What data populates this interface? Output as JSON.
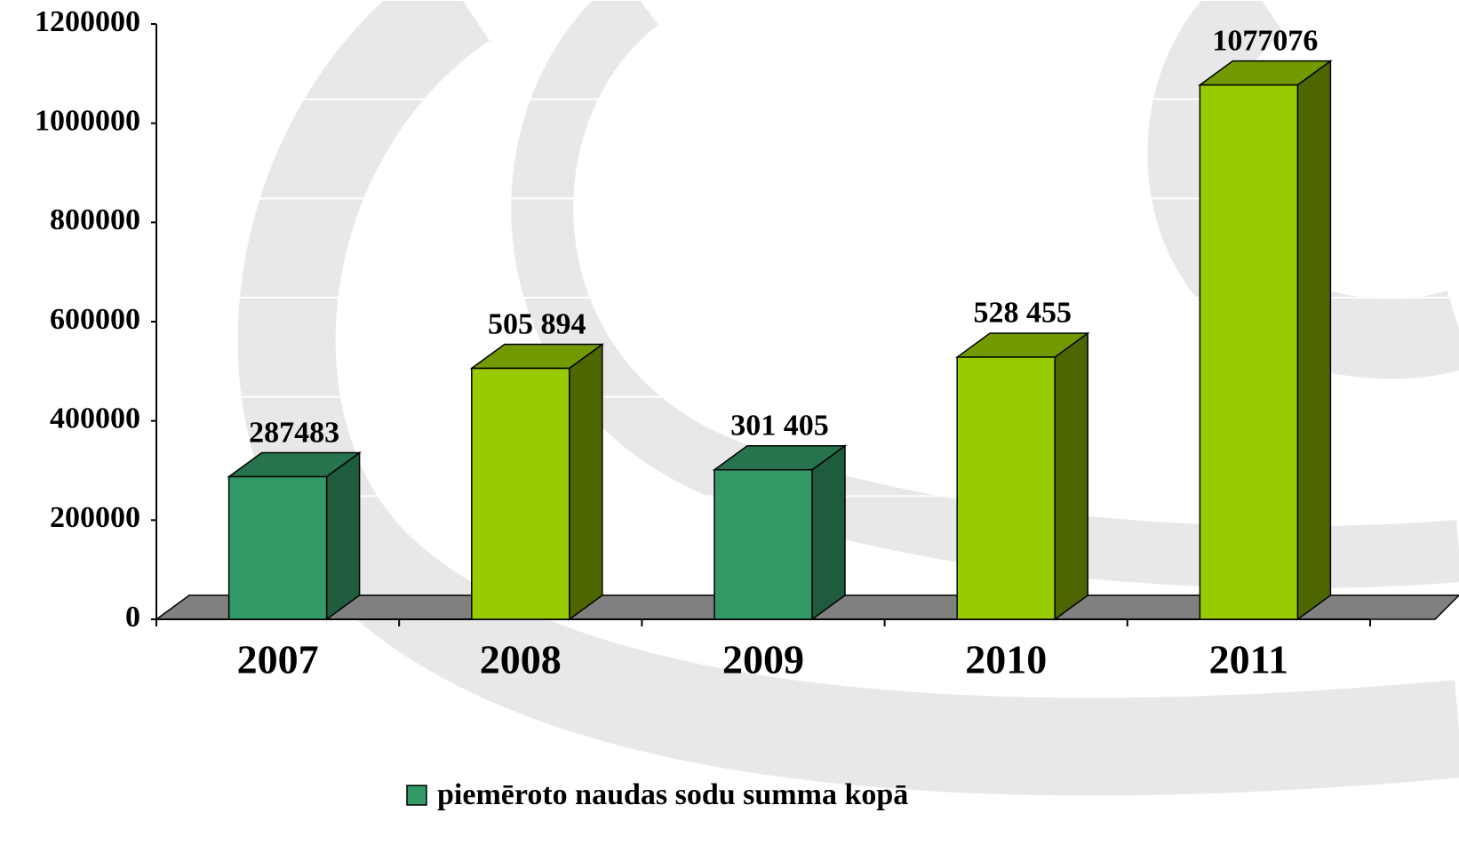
{
  "chart_data": {
    "type": "bar3d",
    "categories": [
      "2007",
      "2008",
      "2009",
      "2010",
      "2011"
    ],
    "series": [
      {
        "name": "piemēroto naudas sodu summa kopā",
        "color": "#339966",
        "point_colors": [
          "#339966",
          "#99cc00",
          "#339966",
          "#99cc00",
          "#99cc00"
        ],
        "values": [
          287483,
          505894,
          301405,
          528455,
          1077076
        ],
        "value_labels": [
          "287483",
          "505 894",
          "301 405",
          "528 455",
          "1077076"
        ]
      }
    ],
    "ylim": [
      0,
      1200000
    ],
    "yticks": [
      0,
      200000,
      400000,
      600000,
      800000,
      1000000,
      1200000
    ],
    "grid": true,
    "legend": "bottom"
  }
}
